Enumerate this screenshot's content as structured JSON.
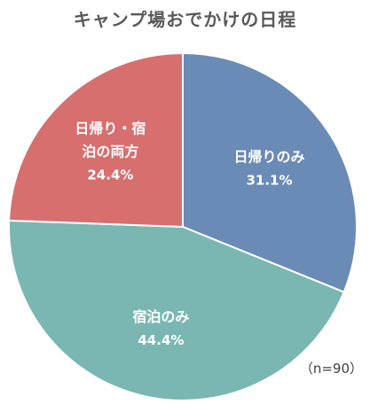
{
  "chart_data": {
    "type": "pie",
    "title": "キャンプ場おでかけの日程",
    "note": "（n=90）",
    "unit": "%",
    "slices": [
      {
        "name": "日帰りのみ",
        "label_lines": [
          "日帰りのみ"
        ],
        "value": 31.1,
        "value_text": "31.1%",
        "color": "#6a8bb6"
      },
      {
        "name": "宿泊のみ",
        "label_lines": [
          "宿泊のみ"
        ],
        "value": 44.4,
        "value_text": "44.4%",
        "color": "#7ab7b2"
      },
      {
        "name": "日帰り・宿泊の両方",
        "label_lines": [
          "日帰り・宿",
          "泊の両方"
        ],
        "value": 24.4,
        "value_text": "24.4%",
        "color": "#d66f6e"
      }
    ]
  }
}
